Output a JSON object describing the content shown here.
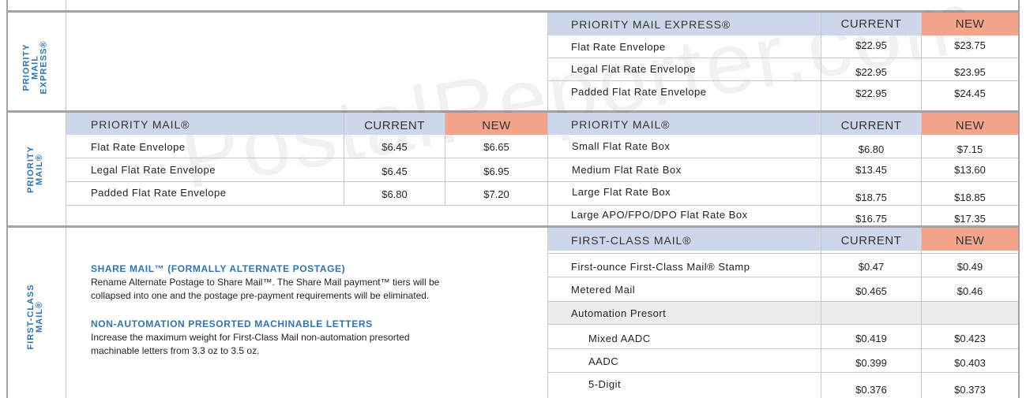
{
  "watermark": "PostalReporter.com",
  "sections": {
    "express": {
      "label_lines": [
        "PRIORITY",
        "MAIL",
        "EXPRESS®"
      ]
    },
    "priority": {
      "label_lines": [
        "PRIORITY",
        "MAIL®"
      ]
    },
    "first_class": {
      "label_lines": [
        "FIRST-CLASS",
        "MAIL®"
      ]
    }
  },
  "columns": {
    "current": "CURRENT",
    "new": "NEW"
  },
  "express_table": {
    "title": "PRIORITY MAIL EXPRESS®",
    "rows": [
      {
        "name": "Flat Rate Envelope",
        "current": "$22.95",
        "new": "$23.75"
      },
      {
        "name": "Legal Flat Rate Envelope",
        "current": "$22.95",
        "new": "$23.95"
      },
      {
        "name": "Padded Flat Rate Envelope",
        "current": "$22.95",
        "new": "$24.45"
      }
    ]
  },
  "priority_left_table": {
    "title": "PRIORITY MAIL®",
    "rows": [
      {
        "name": "Flat Rate Envelope",
        "current": "$6.45",
        "new": "$6.65"
      },
      {
        "name": "Legal Flat Rate Envelope",
        "current": "$6.45",
        "new": "$6.95"
      },
      {
        "name": "Padded Flat Rate Envelope",
        "current": "$6.80",
        "new": "$7.20"
      }
    ]
  },
  "priority_right_table": {
    "title": "PRIORITY MAIL®",
    "rows": [
      {
        "name": "Small Flat Rate Box",
        "current": "$6.80",
        "new": "$7.15"
      },
      {
        "name": "Medium Flat Rate Box",
        "current": "$13.45",
        "new": "$13.60"
      },
      {
        "name": "Large Flat Rate Box",
        "current": "$18.75",
        "new": "$18.85"
      },
      {
        "name": "Large APO/FPO/DPO Flat Rate Box",
        "current": "$16.75",
        "new": "$17.35"
      }
    ]
  },
  "first_class_table": {
    "title": "FIRST-CLASS MAIL®",
    "rows": [
      {
        "name": "First-ounce First-Class Mail® Stamp",
        "current": "$0.47",
        "new": "$0.49"
      },
      {
        "name": "Metered Mail",
        "current": "$0.465",
        "new": "$0.46"
      },
      {
        "name": "Automation Presort",
        "current": "",
        "new": ""
      },
      {
        "name": "Mixed AADC",
        "current": "$0.419",
        "new": "$0.423"
      },
      {
        "name": "AADC",
        "current": "$0.399",
        "new": "$0.403"
      },
      {
        "name": "5-Digit",
        "current": "$0.376",
        "new": "$0.373"
      }
    ]
  },
  "notes": [
    {
      "title": "SHARE MAIL™ (FORMALLY ALTERNATE POSTAGE)",
      "body": "Rename Alternate Postage to Share Mail™. The Share Mail payment™ tiers will be collapsed into one and the postage pre-payment requirements will be eliminated."
    },
    {
      "title": "NON-AUTOMATION PRESORTED MACHINABLE LETTERS",
      "body": "Increase the maximum weight for First-Class Mail non-automation presorted machinable letters from 3.3 oz to 3.5 oz."
    }
  ]
}
